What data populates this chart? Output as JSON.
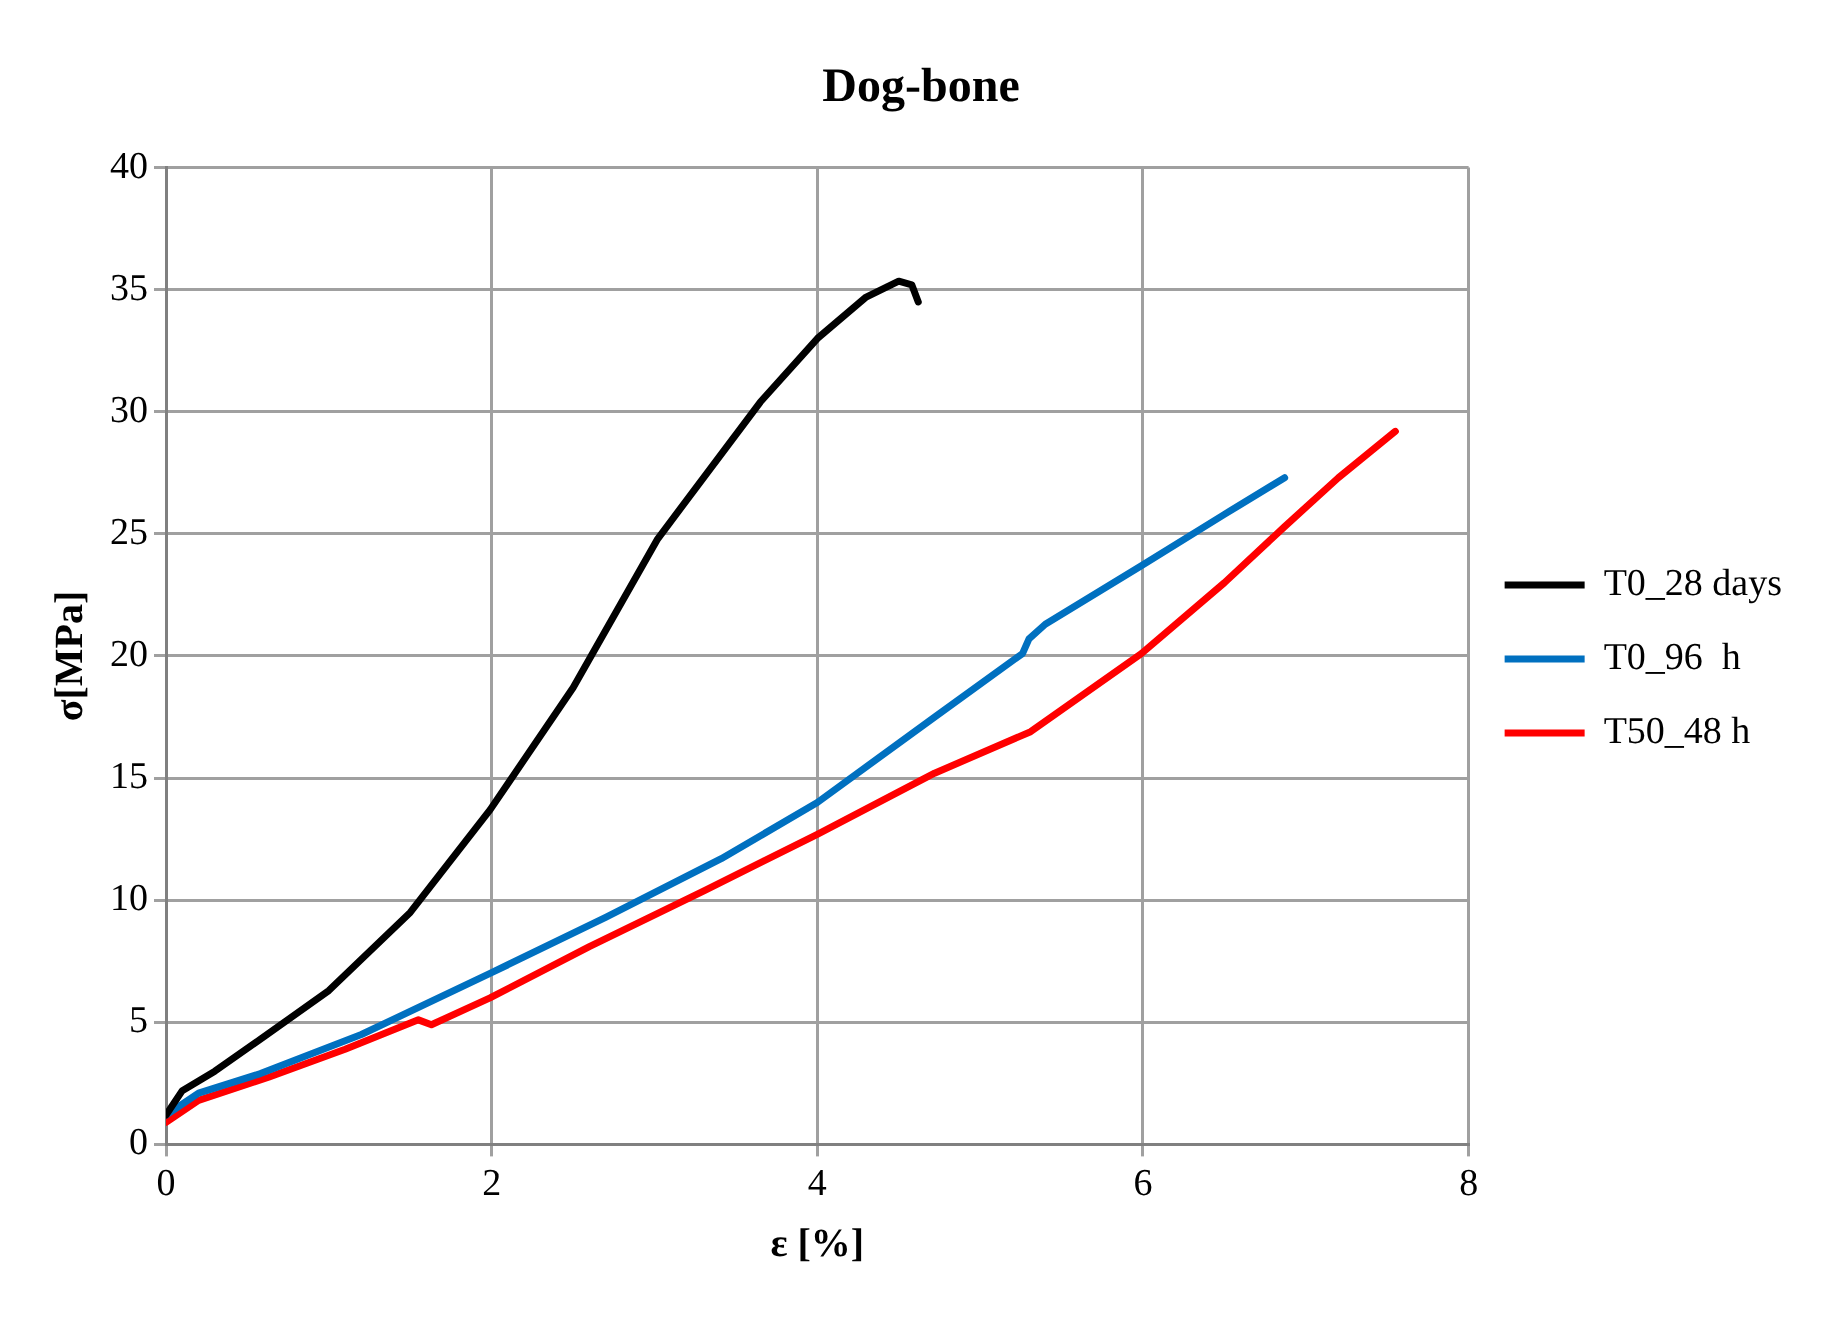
{
  "chart_data": {
    "type": "line",
    "title": "Dog-bone",
    "xlabel": "ε [%]",
    "ylabel": "σ[MPa]",
    "xlim": [
      0,
      8
    ],
    "xticks": [
      0,
      2,
      4,
      6,
      8
    ],
    "ylim": [
      0,
      40
    ],
    "yticks": [
      0,
      5,
      10,
      15,
      20,
      25,
      30,
      35,
      40
    ],
    "grid": true,
    "legend": "right",
    "marker": "none",
    "line_style": "solid",
    "series": [
      {
        "name": "T0_28 days",
        "color": "#000000",
        "x": [
          0,
          0.1,
          0.3,
          0.6,
          1,
          1.5,
          1.99,
          2.5,
          3.02,
          3.65,
          4,
          4.3,
          4.5,
          4.58,
          4.62
        ],
        "values": [
          1.2,
          2.2,
          3.0,
          4.4,
          6.3,
          9.5,
          13.7,
          18.7,
          24.8,
          30.4,
          33.0,
          34.7,
          35.35,
          35.2,
          34.5
        ]
      },
      {
        "name": "T0_96  h",
        "color": "#0070c0",
        "x": [
          0,
          0.2,
          0.58,
          1.2,
          1.99,
          2.7,
          3.41,
          4.0,
          4.72,
          5.26,
          5.3,
          5.4,
          5.99,
          6.5,
          6.87
        ],
        "values": [
          1.2,
          2.1,
          2.9,
          4.5,
          7.0,
          9.3,
          11.7,
          14.0,
          17.5,
          20.1,
          20.7,
          21.3,
          23.7,
          25.8,
          27.3
        ]
      },
      {
        "name": "T50_48 h",
        "color": "#ff0000",
        "x": [
          0,
          0.2,
          0.63,
          1.1,
          1.55,
          1.63,
          1.99,
          2.6,
          3.31,
          4.0,
          4.72,
          5.31,
          5.99,
          6.5,
          6.87,
          7.2,
          7.55
        ],
        "values": [
          0.9,
          1.8,
          2.75,
          3.9,
          5.1,
          4.9,
          6.0,
          8.1,
          10.4,
          12.7,
          15.2,
          16.9,
          20.1,
          23.0,
          25.3,
          27.3,
          29.2
        ]
      }
    ]
  }
}
